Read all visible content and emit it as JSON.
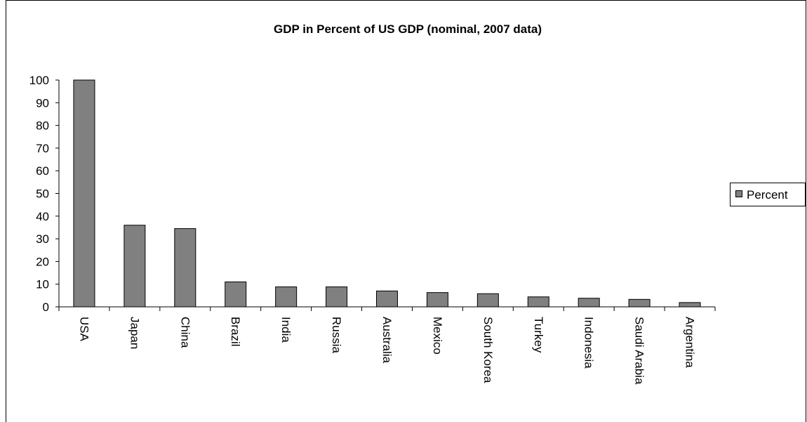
{
  "chart_data": {
    "type": "bar",
    "title": "GDP in Percent of US GDP (nominal, 2007 data)",
    "xlabel": "",
    "ylabel": "",
    "categories": [
      "USA",
      "Japan",
      "China",
      "Brazil",
      "India",
      "Russia",
      "Australia",
      "Mexico",
      "South Korea",
      "Turkey",
      "Indonesia",
      "Saudi Arabia",
      "Argentina"
    ],
    "series": [
      {
        "name": "Percent",
        "values": [
          100,
          36,
          34.5,
          11,
          8.8,
          8.8,
          7,
          6.3,
          5.8,
          4.4,
          3.8,
          3.3,
          1.9
        ]
      }
    ],
    "ylim": [
      0,
      100
    ],
    "yticks": [
      0,
      10,
      20,
      30,
      40,
      50,
      60,
      70,
      80,
      90,
      100
    ],
    "grid": false,
    "legend_position": "right",
    "bar_color": "#808080",
    "bar_outline_color": "#000000",
    "axis_color": "#000000",
    "background_color": "#ffffff"
  }
}
